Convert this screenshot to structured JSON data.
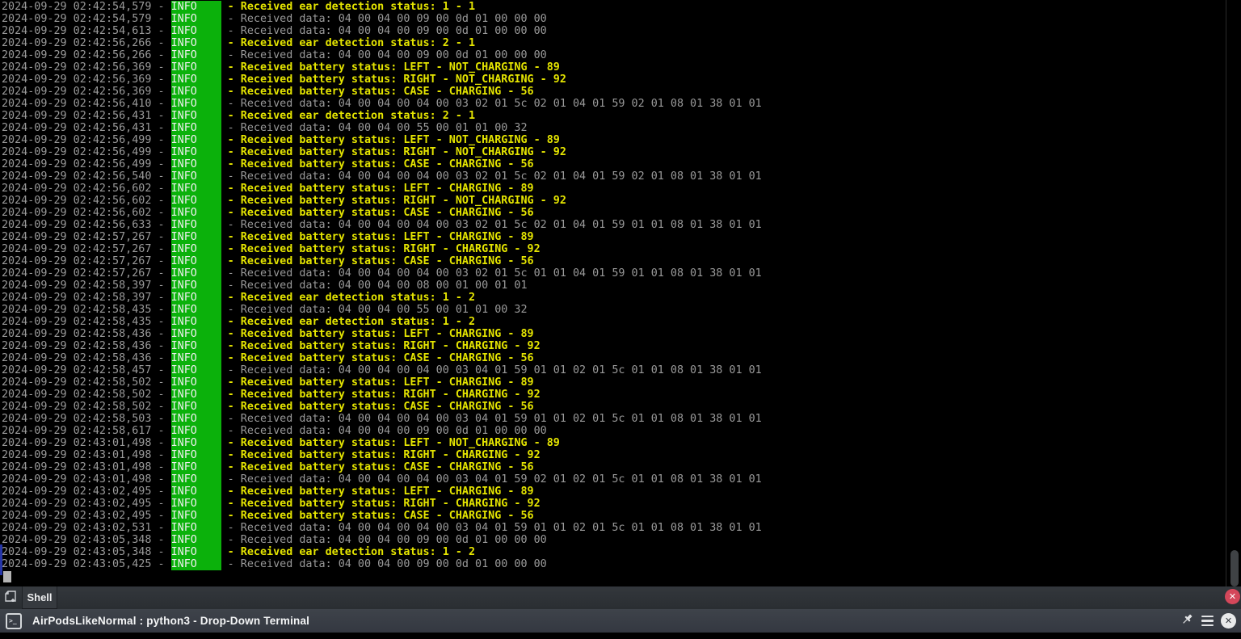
{
  "terminal": {
    "date": "2024-09-29",
    "level": "INFO",
    "lines": [
      {
        "t": "02:42:54,579",
        "kind": "event",
        "msg": "Received ear detection status: 1 - 1"
      },
      {
        "t": "02:42:54,579",
        "kind": "data",
        "msg": "Received data: 04 00 04 00 09 00 0d 01 00 00 00"
      },
      {
        "t": "02:42:54,613",
        "kind": "data",
        "msg": "Received data: 04 00 04 00 09 00 0d 01 00 00 00"
      },
      {
        "t": "02:42:56,266",
        "kind": "event",
        "msg": "Received ear detection status: 2 - 1"
      },
      {
        "t": "02:42:56,266",
        "kind": "data",
        "msg": "Received data: 04 00 04 00 09 00 0d 01 00 00 00"
      },
      {
        "t": "02:42:56,369",
        "kind": "event",
        "msg": "Received battery status: LEFT - NOT_CHARGING - 89"
      },
      {
        "t": "02:42:56,369",
        "kind": "event",
        "msg": "Received battery status: RIGHT - NOT_CHARGING - 92"
      },
      {
        "t": "02:42:56,369",
        "kind": "event",
        "msg": "Received battery status: CASE - CHARGING - 56"
      },
      {
        "t": "02:42:56,410",
        "kind": "data",
        "msg": "Received data: 04 00 04 00 04 00 03 02 01 5c 02 01 04 01 59 02 01 08 01 38 01 01"
      },
      {
        "t": "02:42:56,431",
        "kind": "event",
        "msg": "Received ear detection status: 2 - 1"
      },
      {
        "t": "02:42:56,431",
        "kind": "data",
        "msg": "Received data: 04 00 04 00 55 00 01 01 00 32"
      },
      {
        "t": "02:42:56,499",
        "kind": "event",
        "msg": "Received battery status: LEFT - NOT_CHARGING - 89"
      },
      {
        "t": "02:42:56,499",
        "kind": "event",
        "msg": "Received battery status: RIGHT - NOT_CHARGING - 92"
      },
      {
        "t": "02:42:56,499",
        "kind": "event",
        "msg": "Received battery status: CASE - CHARGING - 56"
      },
      {
        "t": "02:42:56,540",
        "kind": "data",
        "msg": "Received data: 04 00 04 00 04 00 03 02 01 5c 02 01 04 01 59 02 01 08 01 38 01 01"
      },
      {
        "t": "02:42:56,602",
        "kind": "event",
        "msg": "Received battery status: LEFT - CHARGING - 89"
      },
      {
        "t": "02:42:56,602",
        "kind": "event",
        "msg": "Received battery status: RIGHT - NOT_CHARGING - 92"
      },
      {
        "t": "02:42:56,602",
        "kind": "event",
        "msg": "Received battery status: CASE - CHARGING - 56"
      },
      {
        "t": "02:42:56,633",
        "kind": "data",
        "msg": "Received data: 04 00 04 00 04 00 03 02 01 5c 02 01 04 01 59 01 01 08 01 38 01 01"
      },
      {
        "t": "02:42:57,267",
        "kind": "event",
        "msg": "Received battery status: LEFT - CHARGING - 89"
      },
      {
        "t": "02:42:57,267",
        "kind": "event",
        "msg": "Received battery status: RIGHT - CHARGING - 92"
      },
      {
        "t": "02:42:57,267",
        "kind": "event",
        "msg": "Received battery status: CASE - CHARGING - 56"
      },
      {
        "t": "02:42:57,267",
        "kind": "data",
        "msg": "Received data: 04 00 04 00 04 00 03 02 01 5c 01 01 04 01 59 01 01 08 01 38 01 01"
      },
      {
        "t": "02:42:58,397",
        "kind": "data",
        "msg": "Received data: 04 00 04 00 08 00 01 00 01 01"
      },
      {
        "t": "02:42:58,397",
        "kind": "event",
        "msg": "Received ear detection status: 1 - 2"
      },
      {
        "t": "02:42:58,435",
        "kind": "data",
        "msg": "Received data: 04 00 04 00 55 00 01 01 00 32"
      },
      {
        "t": "02:42:58,435",
        "kind": "event",
        "msg": "Received ear detection status: 1 - 2"
      },
      {
        "t": "02:42:58,436",
        "kind": "event",
        "msg": "Received battery status: LEFT - CHARGING - 89"
      },
      {
        "t": "02:42:58,436",
        "kind": "event",
        "msg": "Received battery status: RIGHT - CHARGING - 92"
      },
      {
        "t": "02:42:58,436",
        "kind": "event",
        "msg": "Received battery status: CASE - CHARGING - 56"
      },
      {
        "t": "02:42:58,457",
        "kind": "data",
        "msg": "Received data: 04 00 04 00 04 00 03 04 01 59 01 01 02 01 5c 01 01 08 01 38 01 01"
      },
      {
        "t": "02:42:58,502",
        "kind": "event",
        "msg": "Received battery status: LEFT - CHARGING - 89"
      },
      {
        "t": "02:42:58,502",
        "kind": "event",
        "msg": "Received battery status: RIGHT - CHARGING - 92"
      },
      {
        "t": "02:42:58,502",
        "kind": "event",
        "msg": "Received battery status: CASE - CHARGING - 56"
      },
      {
        "t": "02:42:58,503",
        "kind": "data",
        "msg": "Received data: 04 00 04 00 04 00 03 04 01 59 01 01 02 01 5c 01 01 08 01 38 01 01"
      },
      {
        "t": "02:42:58,617",
        "kind": "data",
        "msg": "Received data: 04 00 04 00 09 00 0d 01 00 00 00"
      },
      {
        "t": "02:43:01,498",
        "kind": "event",
        "msg": "Received battery status: LEFT - NOT_CHARGING - 89"
      },
      {
        "t": "02:43:01,498",
        "kind": "event",
        "msg": "Received battery status: RIGHT - CHARGING - 92"
      },
      {
        "t": "02:43:01,498",
        "kind": "event",
        "msg": "Received battery status: CASE - CHARGING - 56"
      },
      {
        "t": "02:43:01,498",
        "kind": "data",
        "msg": "Received data: 04 00 04 00 04 00 03 04 01 59 02 01 02 01 5c 01 01 08 01 38 01 01"
      },
      {
        "t": "02:43:02,495",
        "kind": "event",
        "msg": "Received battery status: LEFT - CHARGING - 89"
      },
      {
        "t": "02:43:02,495",
        "kind": "event",
        "msg": "Received battery status: RIGHT - CHARGING - 92"
      },
      {
        "t": "02:43:02,495",
        "kind": "event",
        "msg": "Received battery status: CASE - CHARGING - 56"
      },
      {
        "t": "02:43:02,531",
        "kind": "data",
        "msg": "Received data: 04 00 04 00 04 00 03 04 01 59 01 01 02 01 5c 01 01 08 01 38 01 01"
      },
      {
        "t": "02:43:05,348",
        "kind": "data",
        "msg": "Received data: 04 00 04 00 09 00 0d 01 00 00 00"
      },
      {
        "t": "02:43:05,348",
        "kind": "event",
        "msg": "Received ear detection status: 1 - 2"
      },
      {
        "t": "02:43:05,425",
        "kind": "data",
        "msg": "Received data: 04 00 04 00 09 00 0d 01 00 00 00"
      }
    ]
  },
  "tabbar": {
    "tab_label": "Shell"
  },
  "titlebar": {
    "title": "AirPodsLikeNormal : python3 - Drop-Down Terminal"
  },
  "icons": {
    "new_tab": "document-plus",
    "tab_close_glyph": "✕",
    "app_glyph": ">_",
    "pin": "pushpin",
    "menu": "hamburger",
    "close_glyph": "✕"
  },
  "colors": {
    "level_badge_bg": "#0bb10b",
    "event_text": "#e5e500",
    "timestamp_text": "#9a9a9a",
    "close_button": "#d4475a",
    "activity_indicator": "#2636a8"
  }
}
